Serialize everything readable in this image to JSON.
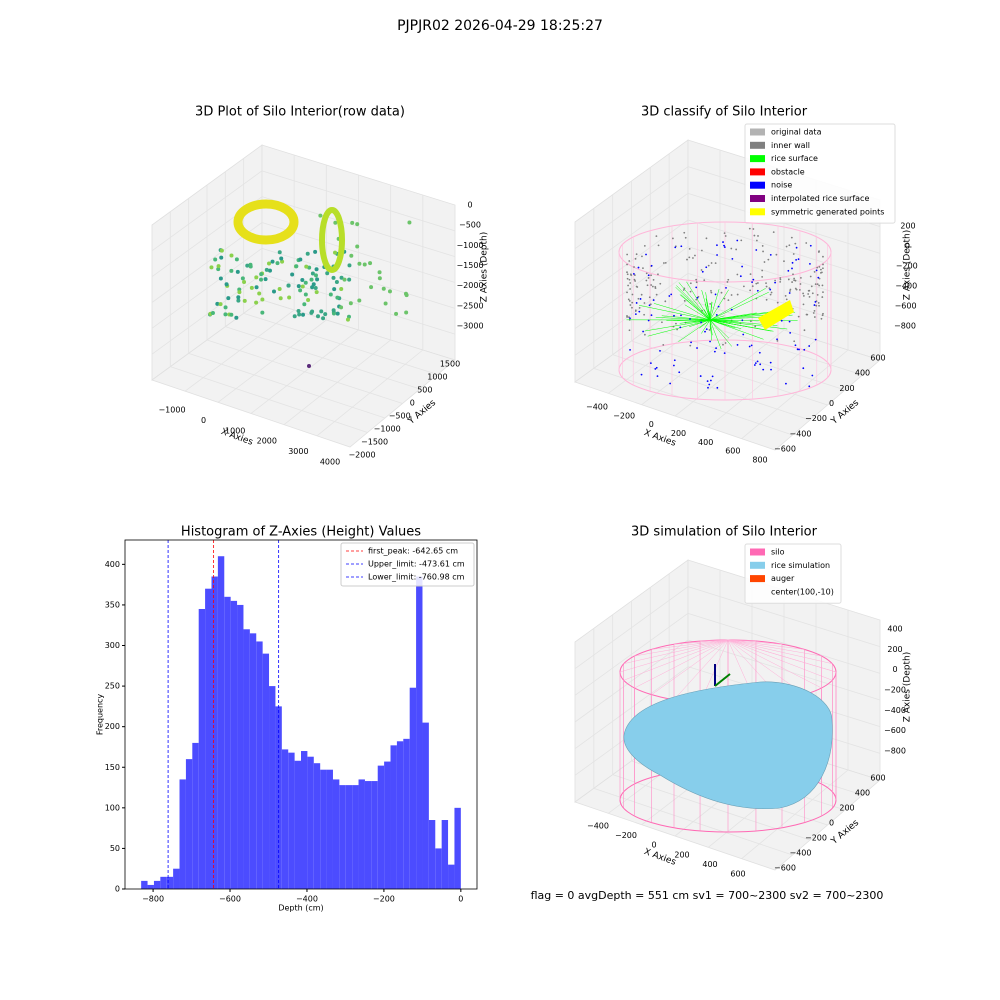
{
  "suptitle": "PJPJR02 2026-04-29 18:25:27",
  "footer": "flag = 0     avgDepth = 551 cm  sv1 = 700~2300  sv2 = 700~2300",
  "chart_data": [
    {
      "type": "scatter3d",
      "title": "3D Plot of Silo Interior(row data)",
      "xlabel": "X Axies",
      "ylabel": "Y Axies",
      "zlabel": "Z Axies (Depth)",
      "xtick_labels": [
        "−1000",
        "0",
        "1000",
        "2000",
        "3000",
        "4000"
      ],
      "ytick_labels": [
        "−2000",
        "−1500",
        "−1000",
        "−500",
        "0",
        "500",
        "1000",
        "1500"
      ],
      "ztick_labels": [
        "0",
        "−500",
        "−1000",
        "−1500",
        "−2000",
        "−2500",
        "−3000"
      ]
    },
    {
      "type": "classify3d",
      "title": "3D classify of Silo Interior",
      "xlabel": "X Axies",
      "ylabel": "Y Axies",
      "zlabel": "Z Axies (Depth)",
      "xtick_labels": [
        "−400",
        "−200",
        "0",
        "200",
        "400",
        "600",
        "800"
      ],
      "ytick_labels": [
        "−600",
        "−400",
        "−200",
        "0",
        "200",
        "400",
        "600"
      ],
      "ztick_labels": [
        "200",
        "0",
        "−200",
        "−400",
        "−600",
        "−800"
      ],
      "legend": [
        {
          "name": "original data",
          "color": "#b3b3b3"
        },
        {
          "name": "inner wall",
          "color": "#808080"
        },
        {
          "name": "rice surface",
          "color": "#00ff00"
        },
        {
          "name": "obstacle",
          "color": "#ff0000"
        },
        {
          "name": "noise",
          "color": "#0000ff"
        },
        {
          "name": "interpolated rice surface",
          "color": "#800080"
        },
        {
          "name": "symmetric generated points",
          "color": "#ffff00"
        }
      ]
    },
    {
      "type": "histogram",
      "title": "Histogram of Z-Axies (Height) Values",
      "xlabel": "Depth (cm)",
      "ylabel": "Frequency",
      "color": "#4c4cff",
      "bins": [
        -831,
        -814.38,
        -797.76,
        -781.14,
        -764.52,
        -747.9,
        -731.28,
        -714.66,
        -698.04,
        -681.42,
        -664.8,
        -648.18,
        -631.56,
        -614.94,
        -598.32,
        -581.7,
        -565.08,
        -548.46,
        -531.84,
        -515.22,
        -498.6,
        -481.98,
        -465.36,
        -448.74,
        -432.12,
        -415.5,
        -398.88,
        -382.26,
        -365.64,
        -349.02,
        -332.4,
        -315.78,
        -299.16,
        -282.54,
        -265.92,
        -249.3,
        -232.68,
        -216.06,
        -199.44,
        -182.82,
        -166.2,
        -149.58,
        -132.96,
        -116.34,
        -99.72,
        -83.1,
        -66.48,
        -49.86,
        -33.24,
        -16.62,
        0
      ],
      "values": [
        10,
        5,
        10,
        15,
        15,
        25,
        135,
        160,
        180,
        345,
        370,
        385,
        410,
        360,
        355,
        350,
        320,
        315,
        305,
        290,
        250,
        225,
        172,
        168,
        158,
        170,
        163,
        155,
        147,
        147,
        135,
        128,
        128,
        128,
        135,
        133,
        133,
        152,
        157,
        177,
        182,
        185,
        248,
        385,
        205,
        85,
        50,
        85,
        30,
        100
      ],
      "xlim": [
        -873,
        42
      ],
      "ylim": [
        0,
        430
      ],
      "xticks": [
        {
          "value": -800,
          "label": "−800"
        },
        {
          "value": -600,
          "label": "−600"
        },
        {
          "value": -400,
          "label": "−400"
        },
        {
          "value": -200,
          "label": "−200"
        },
        0
      ],
      "yticks": [
        0,
        50,
        100,
        150,
        200,
        250,
        300,
        350,
        400
      ],
      "lines": [
        {
          "name": "first_peak: -642.65 cm",
          "value": -642.65,
          "color": "#ff0000"
        },
        {
          "name": "Upper_limit: -473.61 cm",
          "value": -473.61,
          "color": "#0000ff"
        },
        {
          "name": "Lower_limit: -760.98 cm",
          "value": -760.98,
          "color": "#0000ff"
        }
      ]
    },
    {
      "type": "surface3d",
      "title": "3D simulation of Silo Interior",
      "xlabel": "X Axies",
      "ylabel": "Y Axies",
      "zlabel": "Z Axies (Depth)",
      "xtick_labels": [
        "−400",
        "−200",
        "0",
        "200",
        "400",
        "600"
      ],
      "ytick_labels": [
        "−600",
        "−400",
        "−200",
        "0",
        "200",
        "400",
        "600"
      ],
      "ztick_labels": [
        "400",
        "200",
        "0",
        "−200",
        "−400",
        "−600",
        "−800"
      ],
      "legend": [
        {
          "name": "silo",
          "color": "#ff69b4"
        },
        {
          "name": "rice simulation",
          "color": "#87ceeb"
        },
        {
          "name": "auger",
          "color": "#ff4500"
        },
        {
          "name": "center(100,-10)",
          "color": null
        }
      ]
    }
  ]
}
